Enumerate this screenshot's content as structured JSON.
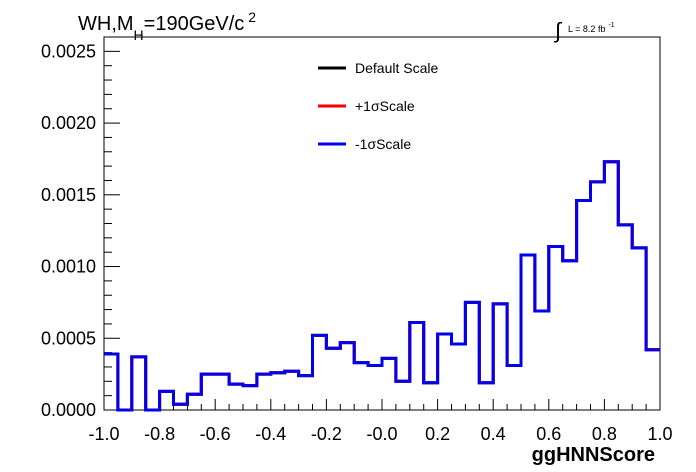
{
  "chart_data": {
    "type": "line",
    "title": {
      "prefix": "WH,M",
      "subscript": "H",
      "main": "=190GeV/c",
      "superscript": "2"
    },
    "lumi": {
      "symbol": "∫",
      "text": "L = 8.2 fb",
      "superscript": "-1"
    },
    "xlabel": "ggHNNScore",
    "ylabel": "",
    "xlim": [
      -1.0,
      1.0
    ],
    "ylim": [
      0.0,
      0.0026
    ],
    "x_ticks": [
      "-1.0",
      "-0.8",
      "-0.6",
      "-0.4",
      "-0.2",
      "-0.0",
      "0.2",
      "0.4",
      "0.6",
      "0.8",
      "1.0"
    ],
    "x_tick_values": [
      -1.0,
      -0.8,
      -0.6,
      -0.4,
      -0.2,
      0.0,
      0.2,
      0.4,
      0.6,
      0.8,
      1.0
    ],
    "y_ticks": [
      "0.0000",
      "0.0005",
      "0.0010",
      "0.0015",
      "0.0020",
      "0.0025"
    ],
    "y_tick_values": [
      0.0,
      0.0005,
      0.001,
      0.0015,
      0.002,
      0.0025
    ],
    "grid": false,
    "legend_position": "top-center",
    "bin_edges": [
      -1.0,
      -0.95,
      -0.9,
      -0.85,
      -0.8,
      -0.75,
      -0.7,
      -0.65,
      -0.6,
      -0.55,
      -0.5,
      -0.45,
      -0.4,
      -0.35,
      -0.3,
      -0.25,
      -0.2,
      -0.15,
      -0.1,
      -0.05,
      0.0,
      0.05,
      0.1,
      0.15,
      0.2,
      0.25,
      0.3,
      0.35,
      0.4,
      0.45,
      0.5,
      0.55,
      0.6,
      0.65,
      0.7,
      0.75,
      0.8,
      0.85,
      0.9,
      0.95,
      1.0
    ],
    "series": [
      {
        "name": "Default Scale",
        "color": "#000000",
        "values": [
          0.00039,
          0.0,
          0.00037,
          0.0,
          0.00013,
          4e-05,
          0.00011,
          0.00025,
          0.00025,
          0.00018,
          0.00017,
          0.00025,
          0.00026,
          0.00027,
          0.00024,
          0.00052,
          0.00043,
          0.00047,
          0.00033,
          0.00031,
          0.00036,
          0.0002,
          0.00061,
          0.00019,
          0.00053,
          0.00046,
          0.00075,
          0.00019,
          0.00074,
          0.00031,
          0.00108,
          0.00069,
          0.00114,
          0.00104,
          0.00146,
          0.00159,
          0.00173,
          0.00129,
          0.00113,
          0.00042
        ]
      },
      {
        "name": "+1σScale",
        "color": "#ff0000",
        "values": [
          0.00039,
          0.0,
          0.00037,
          0.0,
          0.00013,
          4e-05,
          0.00011,
          0.00025,
          0.00025,
          0.00018,
          0.00017,
          0.00025,
          0.00026,
          0.00027,
          0.00024,
          0.00052,
          0.00043,
          0.00047,
          0.00033,
          0.00031,
          0.00036,
          0.0002,
          0.00061,
          0.00019,
          0.00053,
          0.00046,
          0.00075,
          0.00019,
          0.00074,
          0.00031,
          0.00108,
          0.00069,
          0.00114,
          0.00104,
          0.00146,
          0.00159,
          0.00173,
          0.00129,
          0.00113,
          0.00042
        ]
      },
      {
        "name": "-1σScale",
        "color": "#0000ee",
        "values": [
          0.00039,
          0.0,
          0.00037,
          0.0,
          0.00013,
          4e-05,
          0.00011,
          0.00025,
          0.00025,
          0.00018,
          0.00017,
          0.00025,
          0.00026,
          0.00027,
          0.00024,
          0.00052,
          0.00043,
          0.00047,
          0.00033,
          0.00031,
          0.00036,
          0.0002,
          0.00061,
          0.00019,
          0.00053,
          0.00046,
          0.00075,
          0.00019,
          0.00074,
          0.00031,
          0.00108,
          0.00069,
          0.00114,
          0.00104,
          0.00146,
          0.00159,
          0.00173,
          0.00129,
          0.00113,
          0.00042
        ]
      }
    ]
  }
}
